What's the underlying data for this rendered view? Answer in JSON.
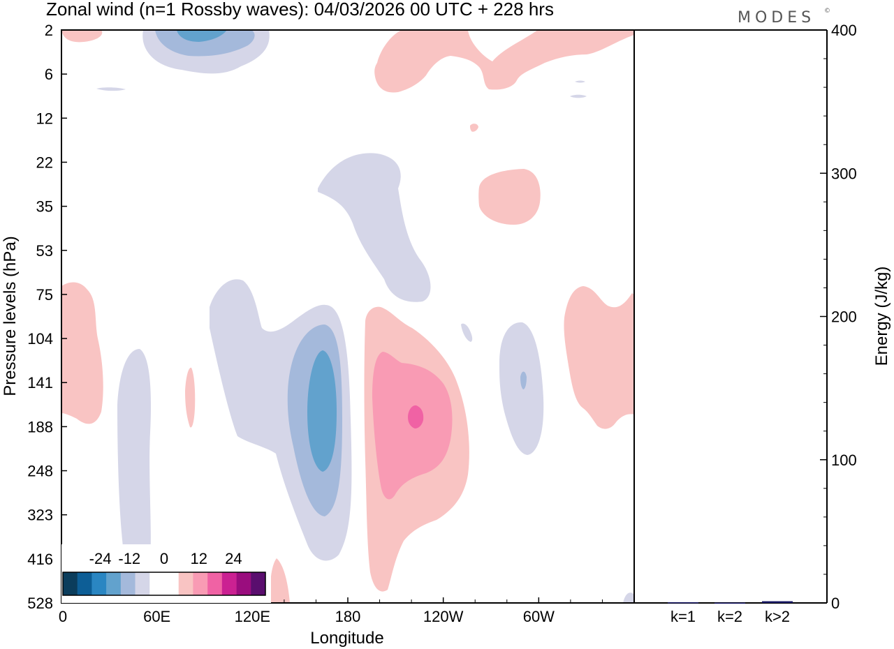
{
  "title": "Zonal wind (n=1 Rossby waves):  04/03/2026  00 UTC  + 228 hrs",
  "brand": "MODES",
  "brand_mark": "©",
  "chart_data": [
    {
      "type": "heatmap",
      "description": "Contour plot of zonal wind anomaly (n=1 Rossby waves) vs longitude and pressure",
      "xlabel": "Longitude",
      "ylabel": "Pressure levels (hPa)",
      "x_ticks": [
        "0",
        "60E",
        "120E",
        "180",
        "120W",
        "60W"
      ],
      "y_ticks": [
        "2",
        "6",
        "12",
        "22",
        "35",
        "53",
        "75",
        "104",
        "141",
        "188",
        "248",
        "323",
        "416",
        "528"
      ],
      "colorbar": {
        "labels": [
          "-24",
          "-12",
          "0",
          "12",
          "24"
        ],
        "colors": [
          "#0b3d5c",
          "#0d5e96",
          "#2a86c2",
          "#62a2cd",
          "#a4b9db",
          "#d5d6e8",
          "#ffffff",
          "#ffffff",
          "#f9c4c3",
          "#f99bb4",
          "#f062a4",
          "#cb2192",
          "#9a0d7e",
          "#5a0e6e"
        ]
      },
      "level_colors": {
        "neg1": "#d5d6e8",
        "neg2": "#a4b9db",
        "neg3": "#62a2cd",
        "pos1": "#f9c4c3",
        "pos2": "#f99bb4",
        "pos3": "#f062a4"
      }
    },
    {
      "type": "bar",
      "categories": [
        "k=1",
        "k=2",
        "k>2"
      ],
      "values": [
        0.5,
        0.2,
        1.2
      ],
      "ylabel": "Energy (J/kg)",
      "ylim": [
        0,
        400
      ],
      "y_ticks": [
        0,
        100,
        200,
        300,
        400
      ],
      "bar_color": "#1a1a66"
    }
  ]
}
